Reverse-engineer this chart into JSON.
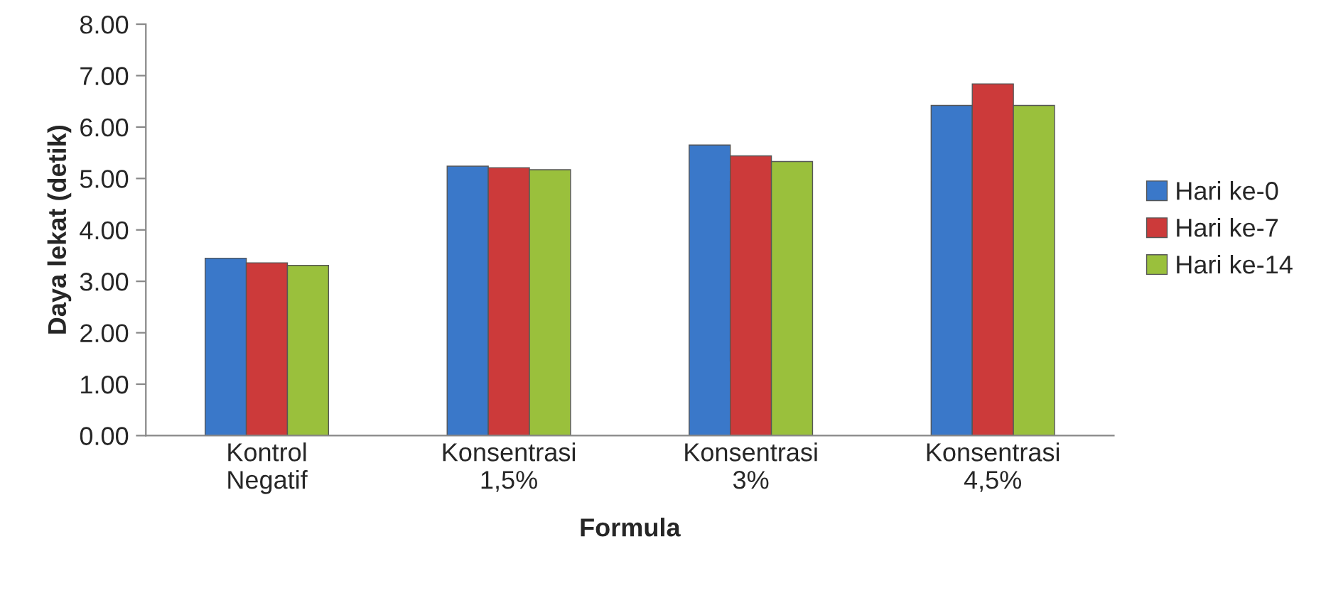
{
  "chart_data": {
    "type": "bar",
    "xlabel": "Formula",
    "ylabel": "Daya lekat (detik)",
    "categories": [
      "Kontrol\nNegatif",
      "Konsentrasi\n1,5%",
      "Konsentrasi\n3%",
      "Konsentrasi\n4,5%"
    ],
    "series": [
      {
        "name": "Hari ke-0",
        "color": "#3a78c9",
        "values": [
          3.45,
          5.24,
          5.65,
          6.42
        ]
      },
      {
        "name": "Hari ke-7",
        "color": "#cc3a3a",
        "values": [
          3.36,
          5.21,
          5.44,
          6.84
        ]
      },
      {
        "name": "Hari ke-14",
        "color": "#9ac03c",
        "values": [
          3.31,
          5.17,
          5.33,
          6.42
        ]
      }
    ],
    "ylim": [
      0,
      8
    ],
    "yticks": [
      {
        "value": 0,
        "label": "0.00"
      },
      {
        "value": 1,
        "label": "1.00"
      },
      {
        "value": 2,
        "label": "2.00"
      },
      {
        "value": 3,
        "label": "3.00"
      },
      {
        "value": 4,
        "label": "4.00"
      },
      {
        "value": 5,
        "label": "5.00"
      },
      {
        "value": 6,
        "label": "6.00"
      },
      {
        "value": 7,
        "label": "7.00"
      },
      {
        "value": 8,
        "label": "8.00"
      }
    ],
    "grid": false,
    "legend": "right"
  }
}
